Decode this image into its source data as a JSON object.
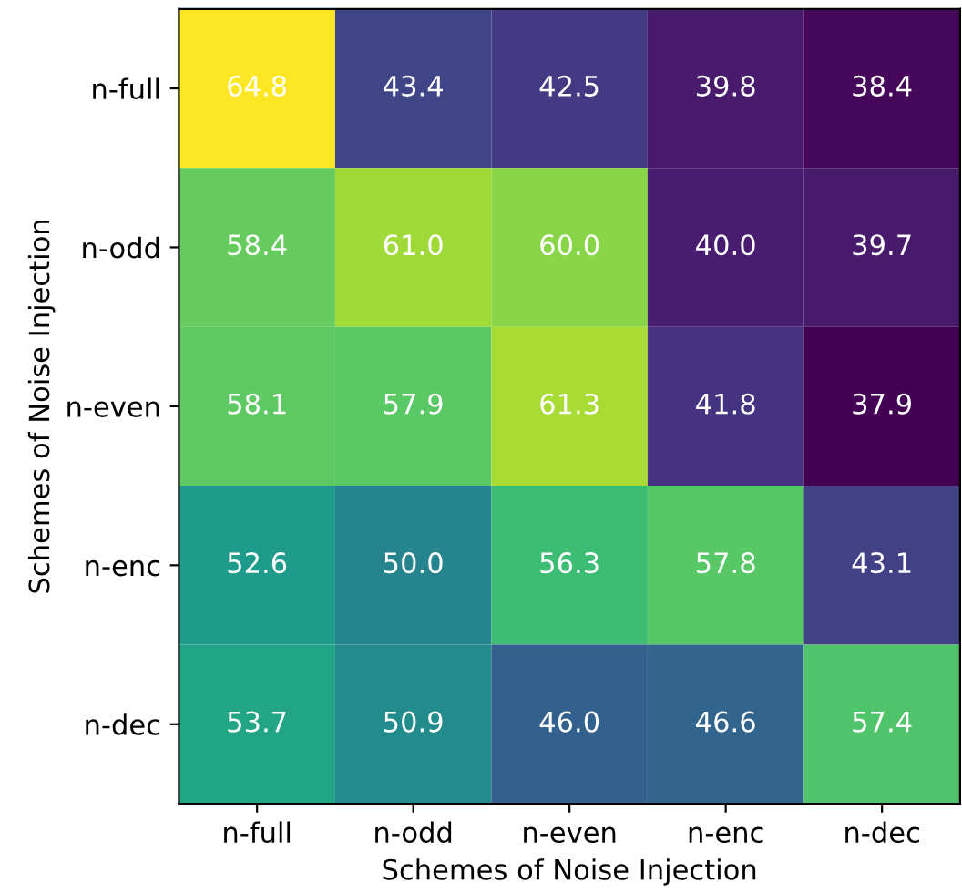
{
  "chart_data": {
    "type": "heatmap",
    "xlabel": "Schemes of Noise Injection",
    "ylabel": "Schemes of Noise Injection",
    "categories": [
      "n-full",
      "n-odd",
      "n-even",
      "n-enc",
      "n-dec"
    ],
    "y_categories": [
      "n-full",
      "n-odd",
      "n-even",
      "n-enc",
      "n-dec"
    ],
    "cells": [
      [
        64.8,
        43.4,
        42.5,
        39.8,
        38.4
      ],
      [
        58.4,
        61.0,
        60.0,
        40.0,
        39.7
      ],
      [
        58.1,
        57.9,
        61.3,
        41.8,
        37.9
      ],
      [
        52.6,
        50.0,
        56.3,
        57.8,
        43.1
      ],
      [
        53.7,
        50.9,
        46.0,
        46.6,
        57.4
      ]
    ],
    "cell_labels": [
      [
        "64.8",
        "43.4",
        "42.5",
        "39.8",
        "38.4"
      ],
      [
        "58.4",
        "61.0",
        "60.0",
        "40.0",
        "39.7"
      ],
      [
        "58.1",
        "57.9",
        "61.3",
        "41.8",
        "37.9"
      ],
      [
        "52.6",
        "50.0",
        "56.3",
        "57.8",
        "43.1"
      ],
      [
        "53.7",
        "50.9",
        "46.0",
        "46.6",
        "57.4"
      ]
    ]
  }
}
